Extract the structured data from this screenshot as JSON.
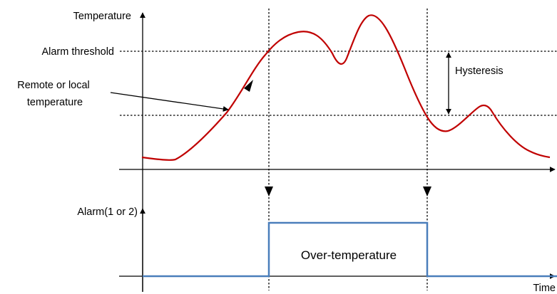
{
  "labels": {
    "temperature_axis": "Temperature",
    "alarm_threshold": "Alarm threshold",
    "remote_line1": "Remote or local",
    "remote_line2": "temperature",
    "hysteresis": "Hysteresis",
    "alarm_axis": "Alarm(1 or 2)",
    "over_temperature": "Over-temperature",
    "time_axis": "Time"
  },
  "colors": {
    "temperature_curve": "#c00000",
    "alarm_signal": "#4a7ebb",
    "lines": "#000000"
  }
}
